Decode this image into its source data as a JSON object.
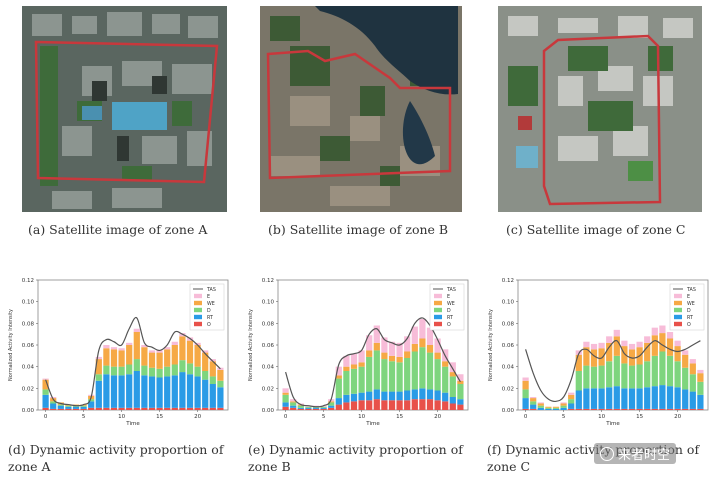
{
  "captions": {
    "a": "(a)  Satellite image of zone A",
    "b": "(b)  Satellite image of zone B",
    "c": "(c)  Satellite image of zone C",
    "d_line1": "(d)  Dynamic activity proportion of",
    "d_line2": "zone A",
    "e_line1": "(e)  Dynamic activity proportion of",
    "e_line2": "zone B",
    "f_line1": "(f)  Dynamic activity proportion of",
    "f_line2": "zone C"
  },
  "watermark": "来者时空",
  "colors": {
    "TAS": "#555555",
    "E": "#f7bcd8",
    "WE": "#f6a945",
    "D": "#7ed57e",
    "RT": "#2a9be6",
    "O": "#e8514a",
    "boundary": "#c8383c"
  },
  "chart_data": [
    {
      "type": "bar",
      "stacked": true,
      "xlabel": "Time",
      "ylabel": "Normalized Activity Intensity",
      "ylim": [
        0,
        0.12
      ],
      "yticks": [
        "0.00",
        "0.02",
        "0.04",
        "0.06",
        "0.08",
        "0.10",
        "0.12"
      ],
      "xticks": [
        "0",
        "5",
        "10",
        "15",
        "20"
      ],
      "legend": [
        "TAS",
        "E",
        "WE",
        "D",
        "RT",
        "O"
      ],
      "legend_position": "top-right",
      "x": [
        0,
        1,
        2,
        3,
        4,
        5,
        6,
        7,
        8,
        9,
        10,
        11,
        12,
        13,
        14,
        15,
        16,
        17,
        18,
        19,
        20,
        21,
        22,
        23
      ],
      "series": [
        {
          "name": "O",
          "values": [
            0.002,
            0.001,
            0.001,
            0.001,
            0.001,
            0.001,
            0.002,
            0.002,
            0.002,
            0.002,
            0.002,
            0.002,
            0.002,
            0.002,
            0.002,
            0.002,
            0.002,
            0.002,
            0.002,
            0.002,
            0.002,
            0.002,
            0.002,
            0.002
          ]
        },
        {
          "name": "RT",
          "values": [
            0.012,
            0.005,
            0.003,
            0.002,
            0.002,
            0.002,
            0.006,
            0.025,
            0.031,
            0.03,
            0.03,
            0.031,
            0.034,
            0.03,
            0.029,
            0.028,
            0.029,
            0.03,
            0.033,
            0.031,
            0.029,
            0.026,
            0.022,
            0.019
          ]
        },
        {
          "name": "D",
          "values": [
            0.005,
            0.002,
            0.001,
            0.001,
            0.001,
            0.001,
            0.002,
            0.006,
            0.008,
            0.008,
            0.008,
            0.009,
            0.011,
            0.009,
            0.008,
            0.008,
            0.009,
            0.01,
            0.011,
            0.01,
            0.009,
            0.008,
            0.007,
            0.006
          ]
        },
        {
          "name": "WE",
          "values": [
            0.009,
            0.003,
            0.002,
            0.001,
            0.001,
            0.001,
            0.003,
            0.014,
            0.016,
            0.016,
            0.015,
            0.018,
            0.025,
            0.017,
            0.014,
            0.015,
            0.016,
            0.018,
            0.022,
            0.021,
            0.02,
            0.017,
            0.014,
            0.01
          ]
        },
        {
          "name": "E",
          "values": [
            0.001,
            0.001,
            0.0,
            0.0,
            0.0,
            0.0,
            0.001,
            0.002,
            0.003,
            0.002,
            0.002,
            0.002,
            0.003,
            0.002,
            0.002,
            0.002,
            0.002,
            0.003,
            0.003,
            0.003,
            0.002,
            0.002,
            0.002,
            0.002
          ]
        }
      ],
      "tas_line": [
        0.028,
        0.01,
        0.006,
        0.005,
        0.004,
        0.005,
        0.012,
        0.055,
        0.065,
        0.063,
        0.06,
        0.075,
        0.085,
        0.062,
        0.058,
        0.055,
        0.06,
        0.072,
        0.07,
        0.066,
        0.06,
        0.052,
        0.045,
        0.038
      ]
    },
    {
      "type": "bar",
      "stacked": true,
      "xlabel": "Time",
      "ylabel": "Normalized Activity Intensity",
      "ylim": [
        0,
        0.12
      ],
      "yticks": [
        "0.00",
        "0.02",
        "0.04",
        "0.06",
        "0.08",
        "0.10",
        "0.12"
      ],
      "xticks": [
        "0",
        "5",
        "10",
        "15",
        "20"
      ],
      "legend": [
        "TAS",
        "E",
        "WE",
        "D",
        "RT",
        "O"
      ],
      "legend_position": "top-right",
      "x": [
        0,
        1,
        2,
        3,
        4,
        5,
        6,
        7,
        8,
        9,
        10,
        11,
        12,
        13,
        14,
        15,
        16,
        17,
        18,
        19,
        20,
        21,
        22,
        23
      ],
      "series": [
        {
          "name": "O",
          "values": [
            0.003,
            0.002,
            0.001,
            0.001,
            0.001,
            0.001,
            0.002,
            0.005,
            0.007,
            0.008,
            0.009,
            0.009,
            0.01,
            0.009,
            0.009,
            0.009,
            0.009,
            0.01,
            0.01,
            0.01,
            0.009,
            0.008,
            0.006,
            0.005
          ]
        },
        {
          "name": "RT",
          "values": [
            0.004,
            0.002,
            0.001,
            0.001,
            0.001,
            0.001,
            0.002,
            0.006,
            0.007,
            0.007,
            0.007,
            0.008,
            0.009,
            0.008,
            0.008,
            0.008,
            0.009,
            0.009,
            0.01,
            0.009,
            0.009,
            0.008,
            0.006,
            0.005
          ]
        },
        {
          "name": "D",
          "values": [
            0.007,
            0.003,
            0.002,
            0.001,
            0.001,
            0.001,
            0.003,
            0.018,
            0.022,
            0.023,
            0.024,
            0.032,
            0.036,
            0.03,
            0.028,
            0.027,
            0.03,
            0.035,
            0.038,
            0.034,
            0.029,
            0.024,
            0.019,
            0.014
          ]
        },
        {
          "name": "WE",
          "values": [
            0.002,
            0.001,
            0.001,
            0.0,
            0.0,
            0.0,
            0.001,
            0.003,
            0.004,
            0.004,
            0.004,
            0.006,
            0.007,
            0.006,
            0.005,
            0.005,
            0.006,
            0.007,
            0.008,
            0.007,
            0.006,
            0.005,
            0.004,
            0.003
          ]
        },
        {
          "name": "E",
          "values": [
            0.004,
            0.002,
            0.001,
            0.001,
            0.001,
            0.001,
            0.002,
            0.008,
            0.01,
            0.01,
            0.011,
            0.014,
            0.016,
            0.014,
            0.013,
            0.013,
            0.014,
            0.016,
            0.018,
            0.016,
            0.013,
            0.011,
            0.009,
            0.006
          ]
        }
      ],
      "tas_line": [
        0.035,
        0.012,
        0.005,
        0.004,
        0.003,
        0.004,
        0.01,
        0.042,
        0.05,
        0.052,
        0.055,
        0.07,
        0.075,
        0.065,
        0.062,
        0.06,
        0.066,
        0.08,
        0.085,
        0.078,
        0.065,
        0.05,
        0.038,
        0.026
      ]
    },
    {
      "type": "bar",
      "stacked": true,
      "xlabel": "Time",
      "ylabel": "Normalized Activity Intensity",
      "ylim": [
        0,
        0.12
      ],
      "yticks": [
        "0.00",
        "0.02",
        "0.04",
        "0.06",
        "0.08",
        "0.10",
        "0.12"
      ],
      "xticks": [
        "0",
        "5",
        "10",
        "15",
        "20"
      ],
      "legend": [
        "TAS",
        "E",
        "WE",
        "D",
        "RT",
        "O"
      ],
      "legend_position": "top-right",
      "x": [
        0,
        1,
        2,
        3,
        4,
        5,
        6,
        7,
        8,
        9,
        10,
        11,
        12,
        13,
        14,
        15,
        16,
        17,
        18,
        19,
        20,
        21,
        22,
        23
      ],
      "series": [
        {
          "name": "O",
          "values": [
            0.001,
            0.001,
            0.0,
            0.0,
            0.0,
            0.0,
            0.001,
            0.001,
            0.001,
            0.001,
            0.001,
            0.001,
            0.001,
            0.001,
            0.001,
            0.001,
            0.001,
            0.001,
            0.001,
            0.001,
            0.001,
            0.001,
            0.001,
            0.001
          ]
        },
        {
          "name": "RT",
          "values": [
            0.01,
            0.004,
            0.002,
            0.001,
            0.001,
            0.002,
            0.005,
            0.017,
            0.019,
            0.019,
            0.019,
            0.02,
            0.021,
            0.019,
            0.019,
            0.019,
            0.02,
            0.021,
            0.022,
            0.021,
            0.02,
            0.018,
            0.016,
            0.013
          ]
        },
        {
          "name": "D",
          "values": [
            0.008,
            0.003,
            0.002,
            0.001,
            0.001,
            0.002,
            0.004,
            0.018,
            0.021,
            0.02,
            0.021,
            0.024,
            0.028,
            0.023,
            0.021,
            0.022,
            0.024,
            0.028,
            0.031,
            0.028,
            0.024,
            0.02,
            0.016,
            0.012
          ]
        },
        {
          "name": "WE",
          "values": [
            0.008,
            0.003,
            0.002,
            0.001,
            0.001,
            0.002,
            0.004,
            0.015,
            0.017,
            0.016,
            0.016,
            0.017,
            0.018,
            0.016,
            0.015,
            0.016,
            0.017,
            0.019,
            0.017,
            0.016,
            0.014,
            0.012,
            0.01,
            0.008
          ]
        },
        {
          "name": "E",
          "values": [
            0.003,
            0.001,
            0.001,
            0.0,
            0.0,
            0.001,
            0.002,
            0.004,
            0.005,
            0.005,
            0.005,
            0.006,
            0.006,
            0.005,
            0.005,
            0.005,
            0.006,
            0.007,
            0.007,
            0.006,
            0.005,
            0.004,
            0.004,
            0.003
          ]
        }
      ],
      "tas_line": [
        0.056,
        0.034,
        0.018,
        0.01,
        0.008,
        0.012,
        0.028,
        0.052,
        0.056,
        0.05,
        0.048,
        0.058,
        0.064,
        0.052,
        0.048,
        0.05,
        0.058,
        0.064,
        0.06,
        0.056,
        0.054,
        0.056,
        0.06,
        0.064
      ]
    }
  ]
}
